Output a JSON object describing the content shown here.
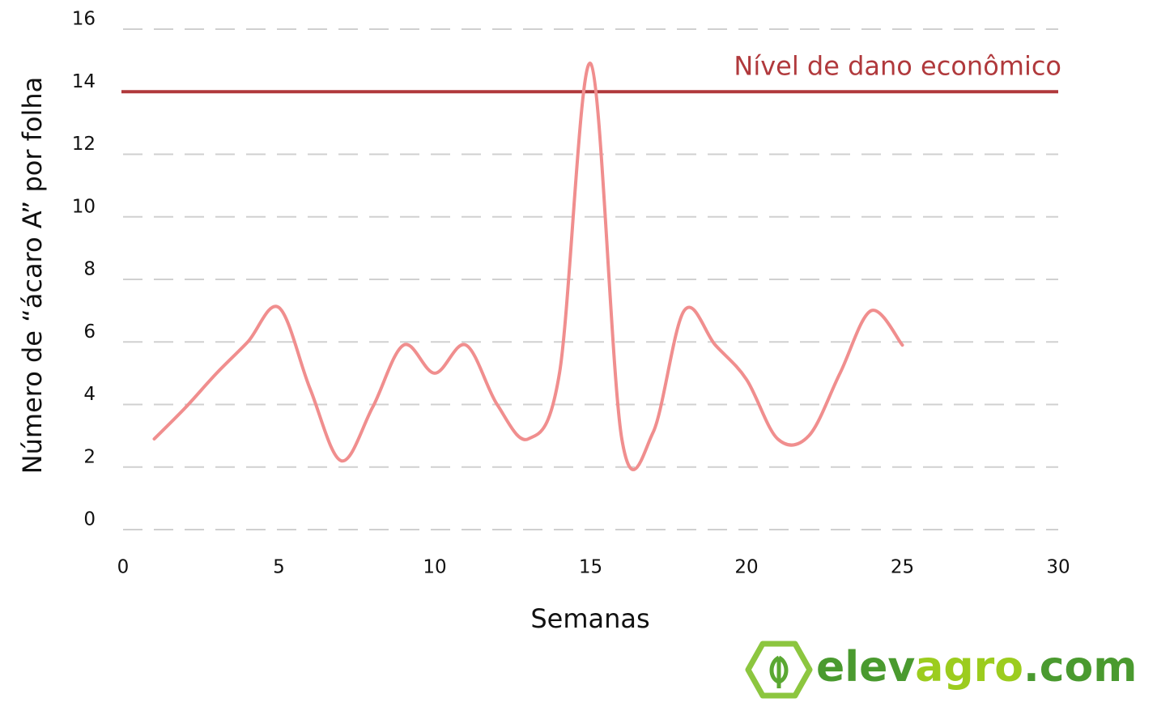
{
  "chart_data": {
    "type": "line",
    "x_label": "Semanas",
    "y_label": "Número de “ácaro A” por folha",
    "x": [
      1,
      2,
      3,
      4,
      5,
      6,
      7,
      8,
      9,
      10,
      11,
      12,
      13,
      14,
      15,
      16,
      17,
      18,
      19,
      20,
      21,
      22,
      23,
      24,
      25
    ],
    "series": [
      {
        "color": "#f08e8e",
        "values": [
          2.9,
          3.9,
          5.0,
          6.0,
          7.1,
          4.5,
          2.2,
          3.9,
          5.9,
          5.0,
          5.9,
          4.0,
          2.9,
          5.0,
          14.9,
          2.9,
          3.1,
          7.0,
          5.9,
          4.8,
          2.9,
          3.0,
          5.0,
          7.0,
          5.9
        ]
      }
    ],
    "threshold": {
      "value": 14,
      "label": "Nível de dano econômico",
      "color": "#b0393c"
    },
    "xlim": [
      0,
      30
    ],
    "xticks": [
      0,
      5,
      10,
      15,
      20,
      25,
      30
    ],
    "ylim": [
      0,
      16
    ],
    "yticks": [
      0,
      2,
      4,
      6,
      8,
      10,
      12,
      14,
      16
    ],
    "grid": true
  },
  "logo": [
    "elev",
    "agro",
    ".com"
  ]
}
